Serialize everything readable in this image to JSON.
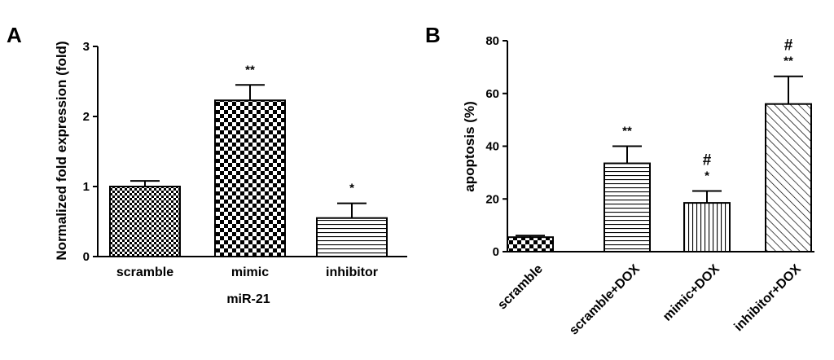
{
  "chart_data": [
    {
      "type": "bar",
      "panel": "A",
      "ylabel": "Normalized fold expression (fold)",
      "xgroup_label": "miR-21",
      "ylim": [
        0,
        3
      ],
      "yticks": [
        "0",
        "1",
        "2",
        "3"
      ],
      "categories": [
        "scramble",
        "mimic",
        "inhibitor"
      ],
      "values": [
        1.0,
        2.23,
        0.55
      ],
      "errors": [
        0.08,
        0.22,
        0.21
      ],
      "annotations": [
        "",
        "**",
        "*"
      ],
      "patterns": [
        "check-small",
        "check-large",
        "h-lines"
      ],
      "grid": false
    },
    {
      "type": "bar",
      "panel": "B",
      "ylabel": "apoptosis (%)",
      "ylim": [
        0,
        80
      ],
      "yticks": [
        "0",
        "20",
        "40",
        "60",
        "80"
      ],
      "categories": [
        "scramble",
        "scramble+DOX",
        "mimic+DOX",
        "inhibitor+DOX"
      ],
      "values": [
        5.5,
        33.5,
        18.5,
        56.0
      ],
      "errors": [
        0.6,
        6.5,
        4.5,
        10.5
      ],
      "annotations": [
        "",
        "**",
        "*",
        "**"
      ],
      "hash_marks": [
        "",
        "",
        "#",
        "#"
      ],
      "patterns": [
        "check-large",
        "h-lines",
        "v-lines",
        "diag-lines"
      ],
      "grid": false
    }
  ]
}
